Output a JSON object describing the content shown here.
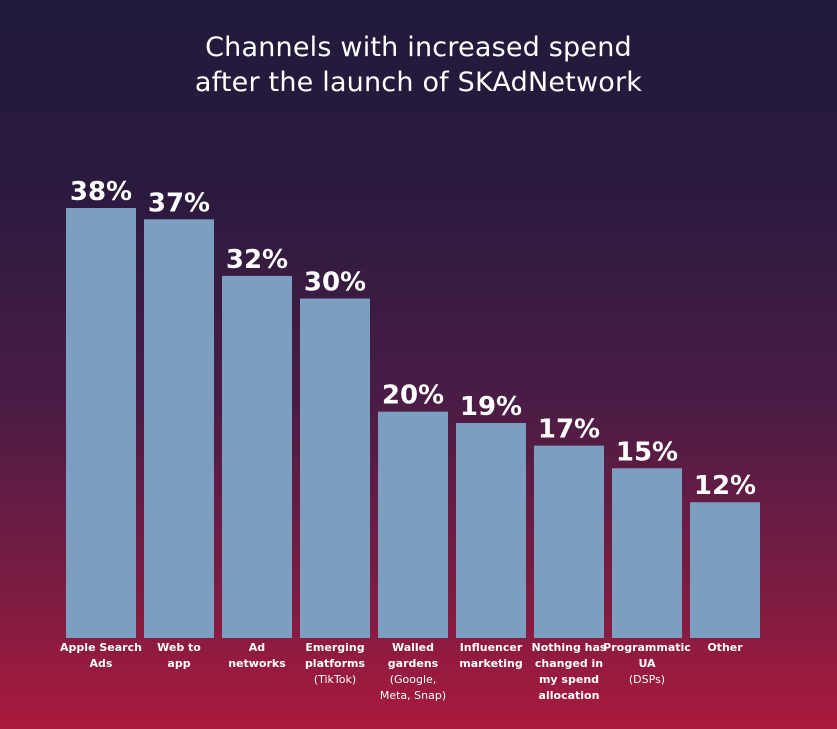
{
  "chart_data": {
    "type": "bar",
    "title_lines": [
      "Channels with increased spend",
      "after the launch of SKAdNetwork"
    ],
    "categories": [
      {
        "lines": [
          "Apple Search",
          "Ads"
        ],
        "sub": []
      },
      {
        "lines": [
          "Web to",
          "app"
        ],
        "sub": []
      },
      {
        "lines": [
          "Ad",
          "networks"
        ],
        "sub": []
      },
      {
        "lines": [
          "Emerging",
          "platforms"
        ],
        "sub": [
          "(TikTok)"
        ]
      },
      {
        "lines": [
          "Walled",
          "gardens"
        ],
        "sub": [
          "(Google,",
          "Meta, Snap)"
        ]
      },
      {
        "lines": [
          "Influencer",
          "marketing"
        ],
        "sub": []
      },
      {
        "lines": [
          "Nothing has",
          "changed in",
          "my spend",
          "allocation"
        ],
        "sub": []
      },
      {
        "lines": [
          "Programmatic",
          "UA"
        ],
        "sub": [
          "(DSPs)"
        ]
      },
      {
        "lines": [
          "Other"
        ],
        "sub": []
      }
    ],
    "values": [
      38,
      37,
      32,
      30,
      20,
      19,
      17,
      15,
      12
    ],
    "value_labels": [
      "38%",
      "37%",
      "32%",
      "30%",
      "20%",
      "19%",
      "17%",
      "15%",
      "12%"
    ],
    "ylim": [
      0,
      38
    ],
    "bar_color": "#7c9ec1",
    "grid": false,
    "legend": "none"
  }
}
